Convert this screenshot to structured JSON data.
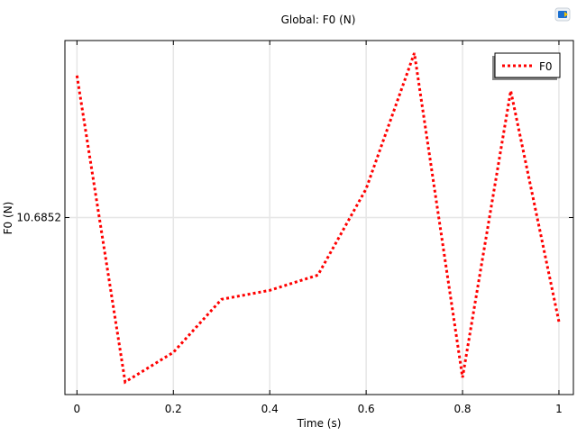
{
  "chart_data": {
    "type": "line",
    "title": "Global: F0 (N)",
    "xlabel": "Time (s)",
    "ylabel": "F0 (N)",
    "xlim": [
      -0.025,
      1.03
    ],
    "ylim": [
      10.685003,
      10.685397
    ],
    "x_ticks": [
      0,
      0.2,
      0.4,
      0.6,
      0.8,
      1
    ],
    "x_tick_labels": [
      "0",
      "0.2",
      "0.4",
      "0.6",
      "0.8",
      "1"
    ],
    "y_ticks": [
      10.6852
    ],
    "y_tick_labels": [
      "10.6852"
    ],
    "grid": true,
    "legend_position": "top-right",
    "series": [
      {
        "name": "F0",
        "color": "#ff0000",
        "line_style": "dotted",
        "x": [
          0,
          0.1,
          0.2,
          0.3,
          0.4,
          0.5,
          0.6,
          0.7,
          0.8,
          0.9,
          1.0
        ],
        "y": [
          10.685358,
          10.685017,
          10.68505,
          10.685109,
          10.685119,
          10.685136,
          10.685232,
          10.685383,
          10.685022,
          10.685341,
          10.685084
        ]
      }
    ]
  },
  "toolbar": {
    "icon": "comsol-logo-icon"
  }
}
